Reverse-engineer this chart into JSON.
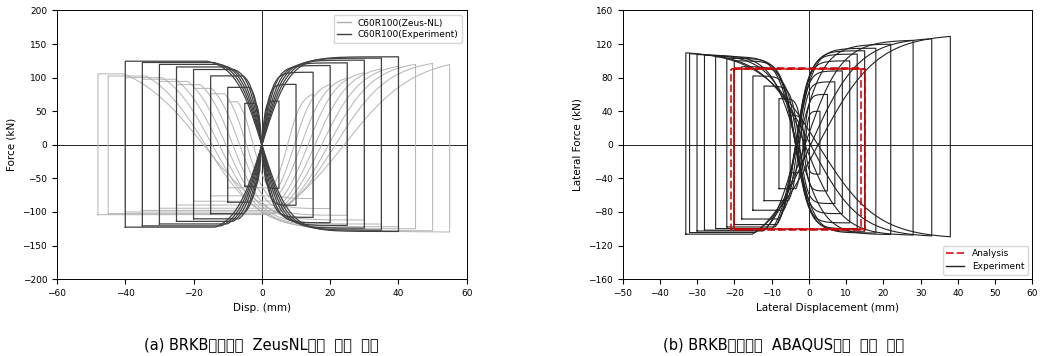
{
  "fig_width": 10.45,
  "fig_height": 3.56,
  "fig_dpi": 100,
  "caption_left": "(a) BRKB실험체와  ZeusNL해석  결과  비교",
  "caption_right": "(b) BRKB실험체와  ABAQUS해석  결과  비교",
  "caption_fontsize": 10.5,
  "left": {
    "xlabel": "Disp. (mm)",
    "ylabel": "Force (kN)",
    "xlim": [
      -60,
      60
    ],
    "ylim": [
      -200,
      200
    ],
    "xticks": [
      -60,
      -40,
      -20,
      0,
      20,
      40,
      60
    ],
    "yticks": [
      -200,
      -150,
      -100,
      -50,
      0,
      50,
      100,
      150,
      200
    ],
    "legend_label1": "C60R100(Zeus-NL)",
    "legend_label2": "C60R100(Experiment)",
    "color_zeus": "#b0b0b0",
    "color_exp": "#404040"
  },
  "right": {
    "xlabel": "Lateral Displacement (mm)",
    "ylabel": "Lateral Force (kN)",
    "xlim": [
      -50,
      60
    ],
    "ylim": [
      -160,
      160
    ],
    "xticks": [
      -50,
      -40,
      -30,
      -20,
      -10,
      0,
      10,
      20,
      30,
      40,
      50,
      60
    ],
    "yticks": [
      -160,
      -120,
      -80,
      -40,
      0,
      40,
      80,
      120,
      160
    ],
    "legend_label1": "Analysis",
    "legend_label2": "Experiment",
    "color_analysis": "#cc0000",
    "color_exp": "#222222"
  }
}
